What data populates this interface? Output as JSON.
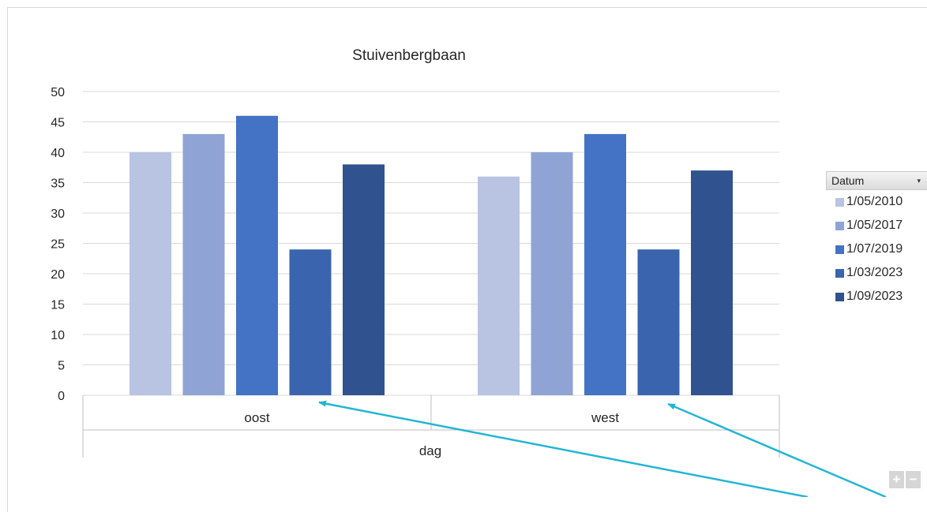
{
  "chart_data": {
    "type": "bar",
    "title": "Stuivenbergbaan",
    "xlabel": "dag",
    "ylabel": "",
    "ylim": [
      0,
      50
    ],
    "yticks": [
      "0",
      "5",
      "10",
      "15",
      "20",
      "25",
      "30",
      "35",
      "40",
      "45",
      "50"
    ],
    "categories": [
      "oost",
      "west"
    ],
    "series": [
      {
        "name": "1/05/2010",
        "color": "#b9c3e2",
        "values": [
          40,
          36
        ]
      },
      {
        "name": "1/05/2017",
        "color": "#8fa3d5",
        "values": [
          43,
          40
        ]
      },
      {
        "name": "1/07/2019",
        "color": "#4472c4",
        "values": [
          46,
          43
        ]
      },
      {
        "name": "1/03/2023",
        "color": "#3a65ae",
        "values": [
          24,
          24
        ]
      },
      {
        "name": "1/09/2023",
        "color": "#30528f",
        "values": [
          38,
          37
        ]
      }
    ],
    "legend_title": "Datum",
    "legend_position": "right",
    "grid": true
  },
  "controls": {
    "zoom_in_label": "+",
    "zoom_out_label": "−",
    "dropdown_icon": "▾"
  },
  "annotations": {
    "arrow_color": "#22b5d3",
    "arrow_count": 2
  }
}
